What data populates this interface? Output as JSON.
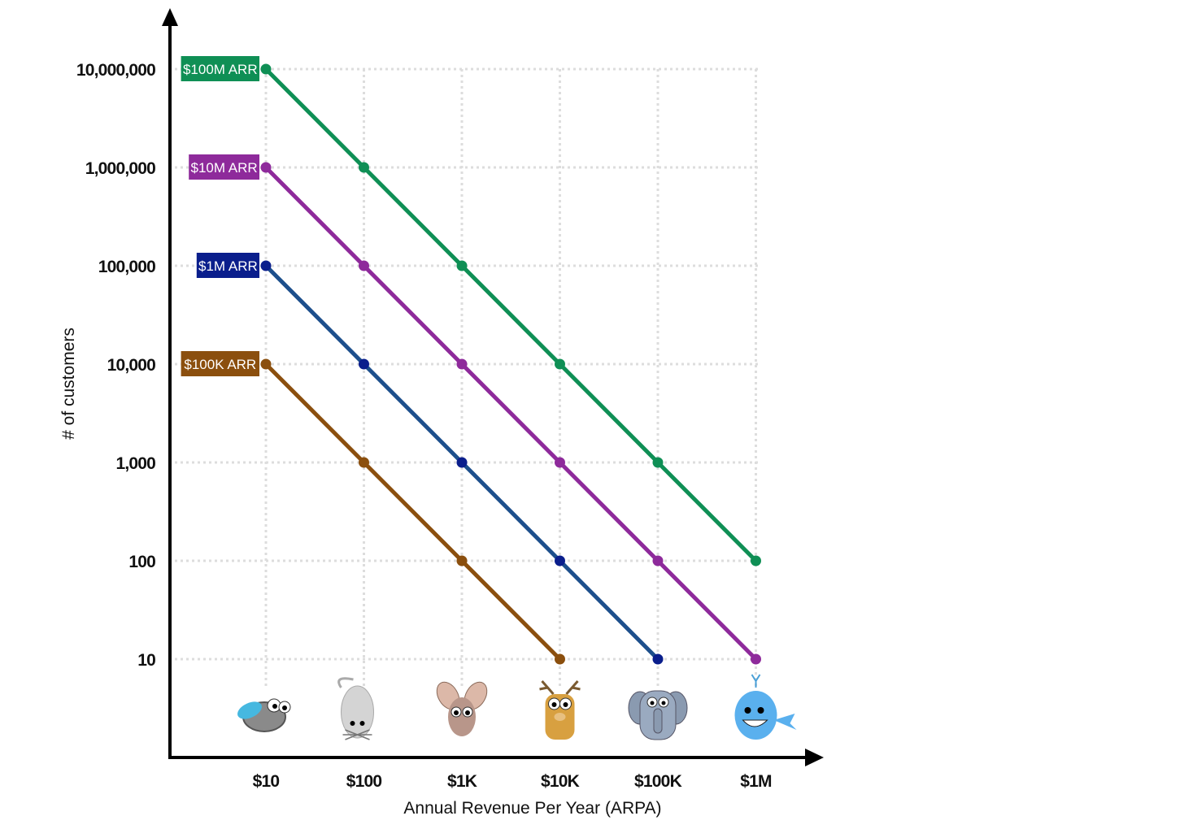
{
  "chart_data": {
    "type": "line",
    "xlabel": "Annual Revenue Per Year (ARPA)",
    "ylabel": "# of customers",
    "x_scale": "log",
    "y_scale": "log",
    "grid": true,
    "categories": [
      "$10",
      "$100",
      "$1K",
      "$10K",
      "$100K",
      "$1M"
    ],
    "x": [
      10,
      100,
      1000,
      10000,
      100000,
      1000000
    ],
    "y_ticks": [
      10,
      100,
      1000,
      10000,
      100000,
      1000000,
      10000000
    ],
    "y_tick_labels": [
      "10",
      "100",
      "1,000",
      "10,000",
      "100,000",
      "1,000,000",
      "10,000,000"
    ],
    "ylim": [
      1,
      10000000
    ],
    "series": [
      {
        "name": "$100M ARR",
        "color": "#0f8f55",
        "marker_color": "#0f8f55",
        "x": [
          10,
          100,
          1000,
          10000,
          100000,
          1000000
        ],
        "values": [
          10000000,
          1000000,
          100000,
          10000,
          1000,
          100
        ]
      },
      {
        "name": "$10M ARR",
        "color": "#8e2a9b",
        "marker_color": "#8e2a9b",
        "x": [
          10,
          100,
          1000,
          10000,
          100000,
          1000000
        ],
        "values": [
          1000000,
          100000,
          10000,
          1000,
          100,
          10
        ]
      },
      {
        "name": "$1M ARR",
        "color": "#1d4f8c",
        "marker_color": "#0a1e8c",
        "label_color": "#0a1e8c",
        "x": [
          10,
          100,
          1000,
          10000,
          100000
        ],
        "values": [
          100000,
          10000,
          1000,
          100,
          10
        ]
      },
      {
        "name": "$100K ARR",
        "color": "#8b4f0e",
        "marker_color": "#8b4f0e",
        "x": [
          10,
          100,
          1000,
          10000
        ],
        "values": [
          10000,
          1000,
          100,
          10
        ]
      }
    ],
    "category_icons": [
      "fly-icon",
      "mouse-icon",
      "rabbit-icon",
      "deer-icon",
      "elephant-icon",
      "whale-icon"
    ]
  }
}
